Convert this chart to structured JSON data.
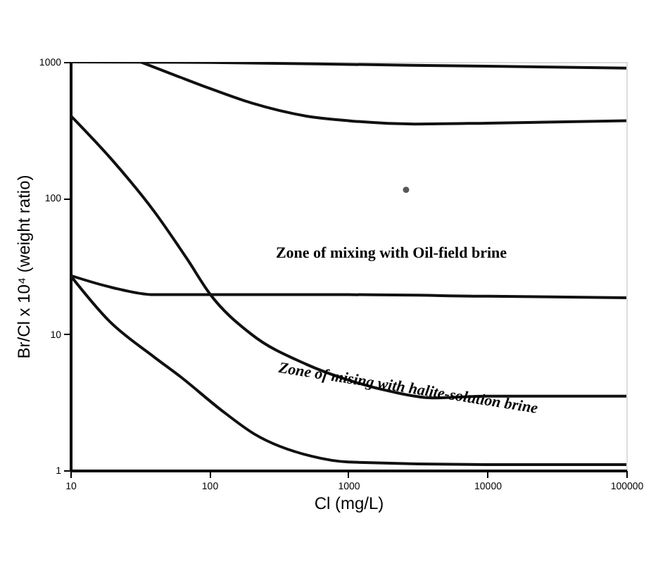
{
  "chart_data": {
    "type": "line",
    "xlabel": "Cl (mg/L)",
    "ylabel": "Br/Cl x 10⁴ (weight ratio)",
    "log": "xy",
    "xlim": [
      10,
      100000
    ],
    "ylim": [
      1,
      1000
    ],
    "xticks": [
      10,
      100,
      1000,
      10000,
      100000
    ],
    "yticks": [
      1,
      10,
      100,
      1000
    ],
    "grid": false,
    "marker": "none",
    "line_style": "solid",
    "series": [
      {
        "color": "#111111",
        "x": [
          10,
          100,
          1000,
          10000,
          100000
        ],
        "values": [
          1000,
          990,
          960,
          930,
          900
        ]
      },
      {
        "color": "#111111",
        "x": [
          32,
          60,
          100,
          200,
          500,
          1000,
          3000,
          10000,
          100000
        ],
        "values": [
          1000,
          780,
          640,
          500,
          400,
          370,
          350,
          355,
          370
        ]
      },
      {
        "color": "#111111",
        "x": [
          10,
          20,
          40,
          70,
          100,
          200,
          500,
          1000,
          2000,
          4000,
          10000,
          100000
        ],
        "values": [
          405,
          190,
          80,
          35,
          20,
          10,
          6,
          4.6,
          3.8,
          3.4,
          3.5,
          3.5
        ]
      },
      {
        "color": "#111111",
        "x": [
          10,
          20,
          40,
          100,
          1000,
          10000,
          100000
        ],
        "values": [
          27,
          22,
          19.5,
          19.5,
          19.5,
          19,
          18.5
        ]
      },
      {
        "color": "#111111",
        "x": [
          10,
          19,
          40,
          63,
          120,
          210,
          540,
          1000,
          10000,
          100000
        ],
        "values": [
          27,
          12.5,
          6.8,
          4.8,
          2.8,
          1.85,
          1.27,
          1.15,
          1.1,
          1.1
        ]
      },
      {
        "type": "scatter",
        "marker": "circle",
        "color": "#111111",
        "x": [
          2600
        ],
        "values": [
          115
        ]
      }
    ],
    "annotations": [
      "Zone of mixing with Oil-field brine",
      "Zone of mising with halite-solution brine"
    ]
  }
}
